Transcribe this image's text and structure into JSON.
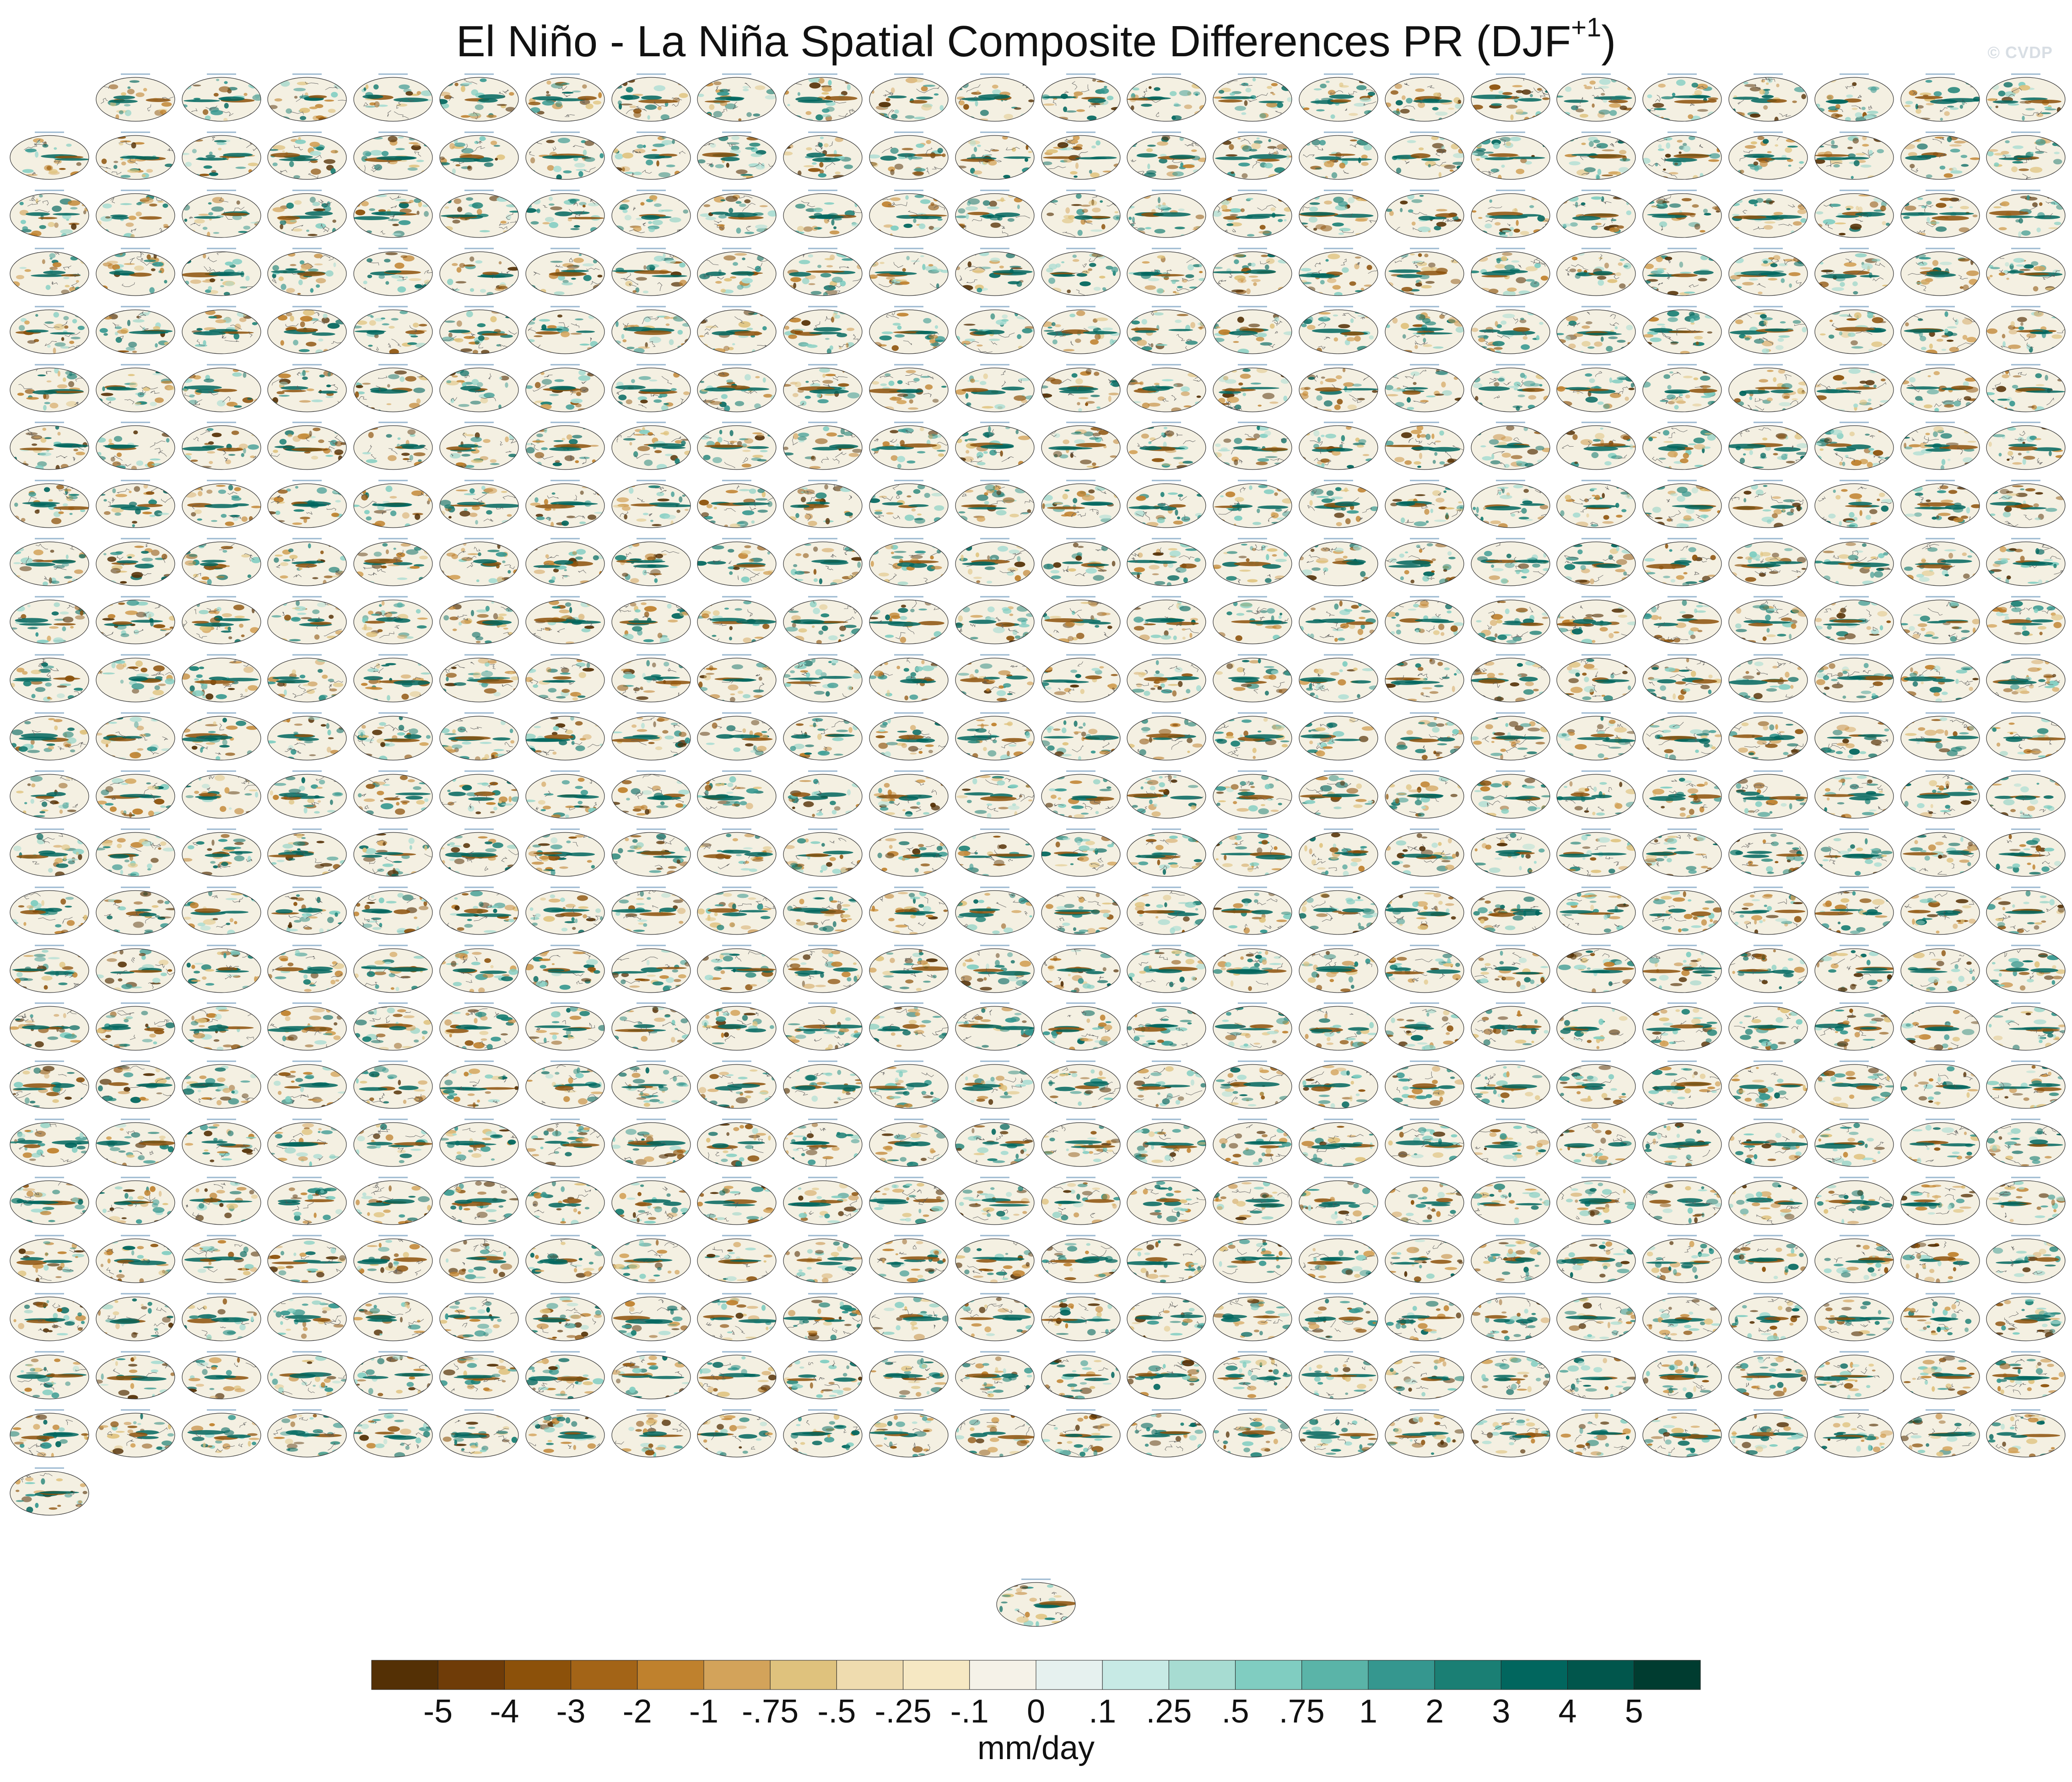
{
  "title": {
    "main": "El Niño - La Niña Spatial Composite Differences PR (DJF",
    "superscript": "+1",
    "closing": ")"
  },
  "watermark": "© CVDP",
  "chart_data": {
    "type": "heatmap",
    "description": "Panel grid of global maps",
    "units": "mm/day",
    "panel_count": 577,
    "colorbar": {
      "tick_labels": [
        "-5",
        "-4",
        "-3",
        "-2",
        "-1",
        "-.75",
        "-.5",
        "-.25",
        "-.1",
        "0",
        ".1",
        ".25",
        ".5",
        ".75",
        "1",
        "2",
        "3",
        "4",
        "5"
      ],
      "colors": [
        "#543005",
        "#6f3c08",
        "#8c510a",
        "#a36417",
        "#bf812d",
        "#d3a35a",
        "#dfc27d",
        "#efdcaf",
        "#f6e8c3",
        "#f5f2e8",
        "#e6f1ef",
        "#c7eae5",
        "#a7dcd2",
        "#80cdc1",
        "#5ab4a8",
        "#35978f",
        "#1a7f74",
        "#01665e",
        "#01564c",
        "#003c30"
      ]
    }
  }
}
